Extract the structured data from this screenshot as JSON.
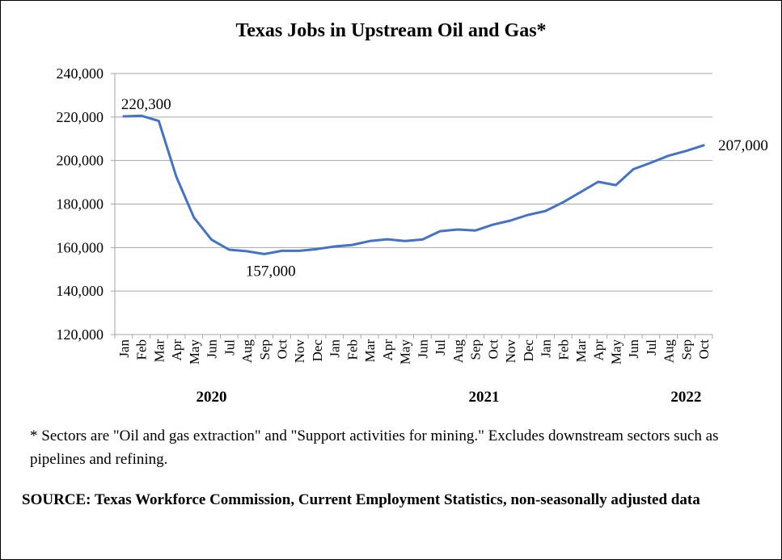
{
  "chart_data": {
    "type": "line",
    "title": "Texas Jobs in Upstream Oil and Gas*",
    "xlabel": "",
    "ylabel": "",
    "ylim": [
      120000,
      240000
    ],
    "yticks": [
      "120,000",
      "140,000",
      "160,000",
      "180,000",
      "200,000",
      "220,000",
      "240,000"
    ],
    "grid": true,
    "legend": "none",
    "line_color": "#4472C4",
    "year_labels": [
      {
        "label": "2020",
        "index": 5
      },
      {
        "label": "2021",
        "index": 20.5
      },
      {
        "label": "2022",
        "index": 32
      }
    ],
    "x": [
      "Jan",
      "Feb",
      "Mar",
      "Apr",
      "May",
      "Jun",
      "Jul",
      "Aug",
      "Sep",
      "Oct",
      "Nov",
      "Dec",
      "Jan",
      "Feb",
      "Mar",
      "Apr",
      "May",
      "Jun",
      "Jul",
      "Aug",
      "Sep",
      "Oct",
      "Nov",
      "Dec",
      "Jan",
      "Feb",
      "Mar",
      "Apr",
      "May",
      "Jun",
      "Jul",
      "Aug",
      "Sep",
      "Oct"
    ],
    "series": [
      {
        "values": [
          220300,
          220600,
          218200,
          192500,
          173800,
          163600,
          159000,
          158300,
          157000,
          158500,
          158500,
          159300,
          160500,
          161200,
          163000,
          163800,
          163000,
          163700,
          167500,
          168300,
          167800,
          170500,
          172400,
          175000,
          176800,
          180800,
          185500,
          190200,
          188700,
          196000,
          199000,
          202200,
          204400,
          207000
        ]
      }
    ],
    "annotations": [
      {
        "text": "220,300",
        "index": 0
      },
      {
        "text": "157,000",
        "index": 8
      },
      {
        "text": "207,000",
        "index": 33
      }
    ]
  },
  "footnote": "* Sectors are \"Oil and gas extraction\" and \"Support activities for mining.\"  Excludes downstream sectors such as pipelines and refining.",
  "source": "SOURCE: Texas Workforce Commission, Current Employment Statistics, non-seasonally adjusted data"
}
